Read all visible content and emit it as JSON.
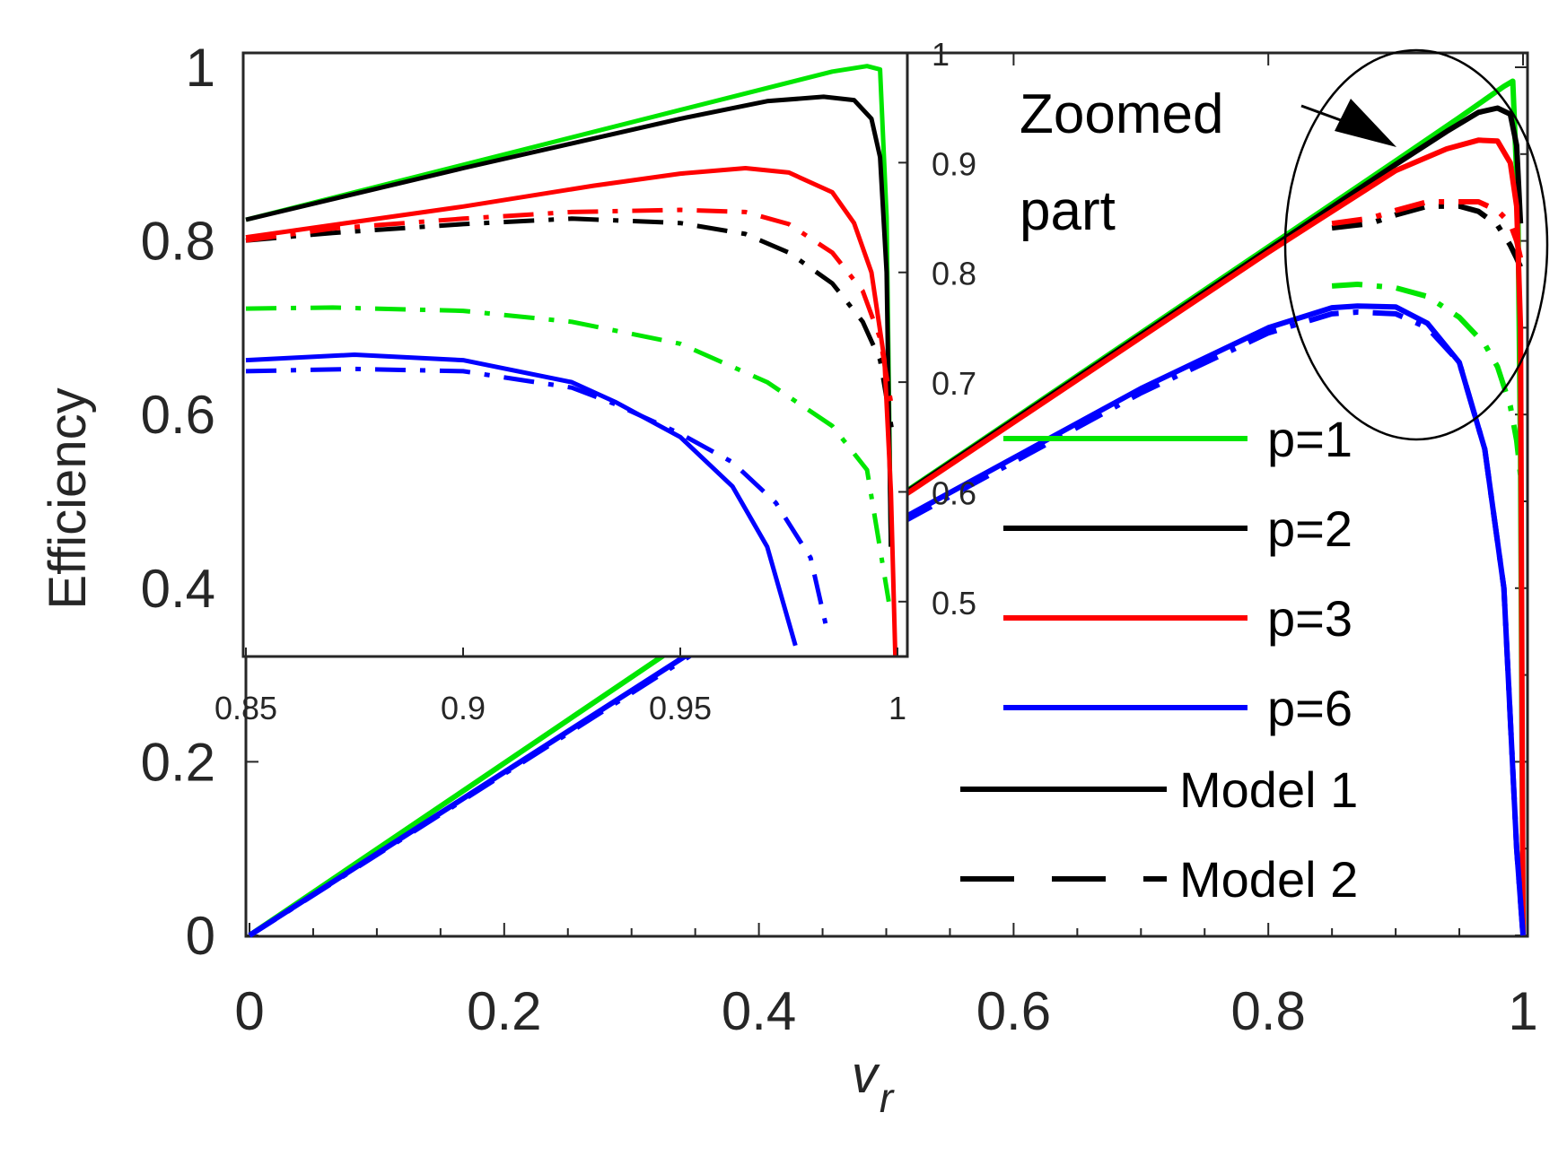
{
  "chart_data": [
    {
      "type": "line",
      "role": "main",
      "xlabel": "v",
      "xlabel_subscript": "r",
      "ylabel": "Efficiency",
      "xlim": [
        0,
        1
      ],
      "ylim": [
        0,
        1
      ],
      "x_ticks": [
        0,
        0.2,
        0.4,
        0.6,
        0.8,
        1
      ],
      "x_tick_labels": [
        "0",
        "0.2",
        "0.4",
        "0.6",
        "0.8",
        "1"
      ],
      "y_ticks": [
        0,
        0.2,
        0.4,
        0.6,
        0.8,
        1
      ],
      "y_tick_labels": [
        "0",
        "0.2",
        "0.4",
        "0.6",
        "0.8",
        "1"
      ],
      "legend_position": "right",
      "legend": [
        {
          "label": "p=1",
          "color": "#00e600",
          "style": "solid"
        },
        {
          "label": "p=2",
          "color": "#000000",
          "style": "solid"
        },
        {
          "label": "p=3",
          "color": "#ff0000",
          "style": "solid"
        },
        {
          "label": "p=6",
          "color": "#0000ff",
          "style": "solid"
        },
        {
          "label": "Model 1",
          "color": "#000000",
          "style": "solid"
        },
        {
          "label": "Model 2",
          "color": "#000000",
          "style": "dash"
        }
      ],
      "annotation": {
        "lines": [
          "Zoomed",
          "part"
        ],
        "target": "ellipse around curve peaks near v_r = 0.93"
      },
      "series": [
        {
          "name": "p=1 Model 1",
          "color": "#00e600",
          "dash": false,
          "x": [
            0,
            0.5,
            0.8,
            0.9,
            0.95,
            0.985,
            0.992,
            0.996,
            0.998,
            1.0
          ],
          "y": [
            0,
            0.496,
            0.793,
            0.892,
            0.942,
            0.978,
            0.984,
            0.84,
            0.55,
            0.0
          ]
        },
        {
          "name": "p=1 Model 2",
          "color": "#00e600",
          "dash": true,
          "x": [
            0.85,
            0.87,
            0.9,
            0.925,
            0.95,
            0.97,
            0.98,
            0.99,
            0.995,
            0.998
          ],
          "y": [
            0.748,
            0.75,
            0.746,
            0.736,
            0.712,
            0.681,
            0.655,
            0.61,
            0.57,
            0.53
          ]
        },
        {
          "name": "p=2 Model 1",
          "color": "#000000",
          "dash": false,
          "x": [
            0.5,
            0.8,
            0.9,
            0.94,
            0.965,
            0.98,
            0.99,
            0.995,
            0.998
          ],
          "y": [
            0.495,
            0.79,
            0.888,
            0.926,
            0.948,
            0.953,
            0.946,
            0.91,
            0.82
          ]
        },
        {
          "name": "p=2 Model 2",
          "color": "#000000",
          "dash": true,
          "x": [
            0.85,
            0.88,
            0.9,
            0.925,
            0.95,
            0.965,
            0.98,
            0.99,
            0.995,
            0.998
          ],
          "y": [
            0.815,
            0.82,
            0.83,
            0.84,
            0.84,
            0.834,
            0.818,
            0.795,
            0.78,
            0.77
          ]
        },
        {
          "name": "p=3 Model 1",
          "color": "#ff0000",
          "dash": false,
          "x": [
            0.5,
            0.8,
            0.9,
            0.94,
            0.965,
            0.98,
            0.99,
            0.995,
            0.998,
            1.0
          ],
          "y": [
            0.493,
            0.787,
            0.881,
            0.906,
            0.916,
            0.915,
            0.89,
            0.84,
            0.7,
            0.0
          ]
        },
        {
          "name": "p=3 Model 2",
          "color": "#ff0000",
          "dash": true,
          "x": [
            0.85,
            0.88,
            0.9,
            0.925,
            0.95,
            0.965,
            0.98,
            0.99,
            0.995,
            0.998
          ],
          "y": [
            0.82,
            0.826,
            0.835,
            0.845,
            0.845,
            0.845,
            0.835,
            0.82,
            0.8,
            0.78
          ]
        },
        {
          "name": "p=6 Model 1",
          "color": "#0000ff",
          "dash": false,
          "x": [
            0,
            0.5,
            0.7,
            0.8,
            0.85,
            0.87,
            0.9,
            0.925,
            0.95,
            0.97,
            0.985,
            0.995,
            1.0
          ],
          "y": [
            0,
            0.47,
            0.63,
            0.7,
            0.723,
            0.725,
            0.724,
            0.705,
            0.66,
            0.56,
            0.4,
            0.1,
            0.0
          ]
        },
        {
          "name": "p=6 Model 2",
          "color": "#0000ff",
          "dash": true,
          "x": [
            0,
            0.5,
            0.7,
            0.8,
            0.85,
            0.87,
            0.9,
            0.925,
            0.95,
            0.97,
            0.985,
            0.995,
            1.0
          ],
          "y": [
            0,
            0.466,
            0.625,
            0.694,
            0.716,
            0.718,
            0.716,
            0.7,
            0.66,
            0.56,
            0.4,
            0.1,
            0.0
          ]
        }
      ]
    },
    {
      "type": "line",
      "role": "inset",
      "title": "",
      "xlim": [
        0.85,
        1
      ],
      "ylim": [
        0.45,
        1.0
      ],
      "x_ticks": [
        0.85,
        0.9,
        0.95,
        1
      ],
      "x_tick_labels": [
        "0.85",
        "0.9",
        "0.95",
        "1"
      ],
      "y_ticks": [
        0.5,
        0.6,
        0.7,
        0.8,
        0.9,
        1
      ],
      "y_tick_labels": [
        "0.5",
        "0.6",
        "0.7",
        "0.8",
        "0.9",
        "1"
      ],
      "series": [
        {
          "name": "p=1 Model 1",
          "color": "#00e600",
          "dash": false,
          "x": [
            0.85,
            0.9,
            0.95,
            0.985,
            0.993,
            0.996,
            0.9975,
            0.9985
          ],
          "y": [
            0.848,
            0.898,
            0.948,
            0.983,
            0.988,
            0.985,
            0.85,
            0.55
          ]
        },
        {
          "name": "p=1 Model 2",
          "color": "#00e600",
          "dash": true,
          "x": [
            0.85,
            0.87,
            0.9,
            0.925,
            0.95,
            0.97,
            0.985,
            0.993,
            0.998
          ],
          "y": [
            0.767,
            0.768,
            0.765,
            0.755,
            0.735,
            0.7,
            0.66,
            0.62,
            0.5
          ]
        },
        {
          "name": "p=2 Model 1",
          "color": "#000000",
          "dash": false,
          "x": [
            0.85,
            0.9,
            0.95,
            0.97,
            0.983,
            0.99,
            0.994,
            0.996,
            0.9975,
            0.9985
          ],
          "y": [
            0.848,
            0.895,
            0.94,
            0.956,
            0.96,
            0.957,
            0.94,
            0.905,
            0.8,
            0.55
          ]
        },
        {
          "name": "p=2 Model 2",
          "color": "#000000",
          "dash": true,
          "x": [
            0.85,
            0.87,
            0.9,
            0.925,
            0.95,
            0.965,
            0.975,
            0.985,
            0.992,
            0.996,
            0.999
          ],
          "y": [
            0.829,
            0.836,
            0.844,
            0.849,
            0.845,
            0.835,
            0.818,
            0.79,
            0.755,
            0.72,
            0.65
          ]
        },
        {
          "name": "p=3 Model 1",
          "color": "#ff0000",
          "dash": false,
          "x": [
            0.85,
            0.9,
            0.93,
            0.95,
            0.965,
            0.975,
            0.985,
            0.99,
            0.994,
            0.997,
            0.9985,
            0.9995
          ],
          "y": [
            0.832,
            0.86,
            0.879,
            0.89,
            0.895,
            0.891,
            0.873,
            0.845,
            0.8,
            0.72,
            0.6,
            0.45
          ]
        },
        {
          "name": "p=3 Model 2",
          "color": "#ff0000",
          "dash": true,
          "x": [
            0.85,
            0.87,
            0.9,
            0.925,
            0.95,
            0.965,
            0.975,
            0.985,
            0.992,
            0.996,
            0.999
          ],
          "y": [
            0.829,
            0.84,
            0.849,
            0.855,
            0.857,
            0.855,
            0.844,
            0.818,
            0.783,
            0.74,
            0.67
          ]
        },
        {
          "name": "p=6 Model 1",
          "color": "#0000ff",
          "dash": false,
          "x": [
            0.85,
            0.875,
            0.9,
            0.925,
            0.935,
            0.95,
            0.962,
            0.97,
            0.9765
          ],
          "y": [
            0.72,
            0.725,
            0.72,
            0.7,
            0.682,
            0.65,
            0.605,
            0.55,
            0.46
          ]
        },
        {
          "name": "p=6 Model 2",
          "color": "#0000ff",
          "dash": true,
          "x": [
            0.85,
            0.875,
            0.9,
            0.925,
            0.935,
            0.95,
            0.962,
            0.972,
            0.98,
            0.984
          ],
          "y": [
            0.71,
            0.712,
            0.71,
            0.695,
            0.68,
            0.653,
            0.627,
            0.59,
            0.54,
            0.47
          ]
        }
      ]
    }
  ]
}
